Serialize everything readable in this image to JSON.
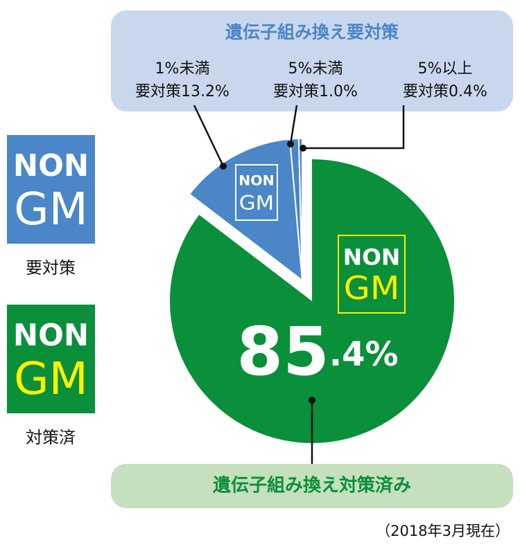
{
  "chart_data": {
    "type": "pie",
    "group_title": "遺伝子組み換え要対策",
    "categories": [
      "遺伝子組み換え対策済み",
      "1%未満",
      "5%未満",
      "5%以上"
    ],
    "values": [
      85.4,
      13.2,
      1.0,
      0.4
    ],
    "value_labels": [
      "85.4%",
      "要対策13.2%",
      "要対策1.0%",
      "要対策0.4%"
    ],
    "colors": [
      "#0a8f3a",
      "#4a86c8",
      "#4a86c8",
      "#4a86c8"
    ],
    "badge": {
      "top": "NON",
      "bottom": "GM"
    },
    "legend": [
      {
        "label": "要対策",
        "color": "#4a86c8",
        "text_color": "#ffffff"
      },
      {
        "label": "対策済",
        "color": "#0a8f3a",
        "text_color": "#fff200"
      }
    ],
    "note": "（2018年3月現在）"
  }
}
